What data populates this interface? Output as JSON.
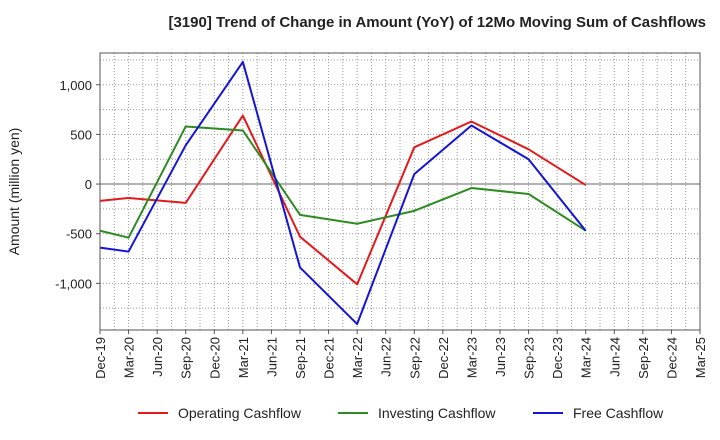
{
  "chart_data": {
    "type": "line",
    "title": "[3190]  Trend of Change in Amount (YoY) of 12Mo Moving Sum of Cashflows",
    "xlabel": "",
    "ylabel": "Amount (million yen)",
    "ylim": [
      -1470,
      1320
    ],
    "yticks": [
      1000,
      500,
      0,
      -500,
      -1000
    ],
    "ytick_labels": [
      "1,000",
      "500",
      "0",
      "-500",
      "-1,000"
    ],
    "grid": true,
    "legend_position": "bottom",
    "categories": [
      "Dec-19",
      "Mar-20",
      "Jun-20",
      "Sep-20",
      "Dec-20",
      "Mar-21",
      "Jun-21",
      "Sep-21",
      "Dec-21",
      "Mar-22",
      "Jun-22",
      "Sep-22",
      "Dec-22",
      "Mar-23",
      "Jun-23",
      "Sep-23",
      "Dec-23",
      "Mar-24",
      "Jun-24",
      "Sep-24",
      "Dec-24",
      "Mar-25"
    ],
    "series": [
      {
        "name": "Operating Cashflow",
        "color": "#e31a1c",
        "values": [
          -170,
          -140,
          null,
          -190,
          null,
          690,
          null,
          -530,
          null,
          -1010,
          null,
          370,
          null,
          630,
          null,
          350,
          null,
          -10,
          null,
          null,
          null,
          null
        ]
      },
      {
        "name": "Investing Cashflow",
        "color": "#2e8b22",
        "values": [
          -470,
          -540,
          null,
          580,
          null,
          540,
          null,
          -310,
          null,
          -400,
          null,
          -270,
          null,
          -40,
          null,
          -100,
          null,
          -470,
          null,
          null,
          null,
          null
        ]
      },
      {
        "name": "Free Cashflow",
        "color": "#1515d6",
        "values": [
          -640,
          -680,
          null,
          390,
          null,
          1230,
          null,
          -840,
          null,
          -1410,
          null,
          100,
          null,
          590,
          null,
          250,
          null,
          -470,
          null,
          null,
          null,
          null
        ]
      }
    ]
  }
}
